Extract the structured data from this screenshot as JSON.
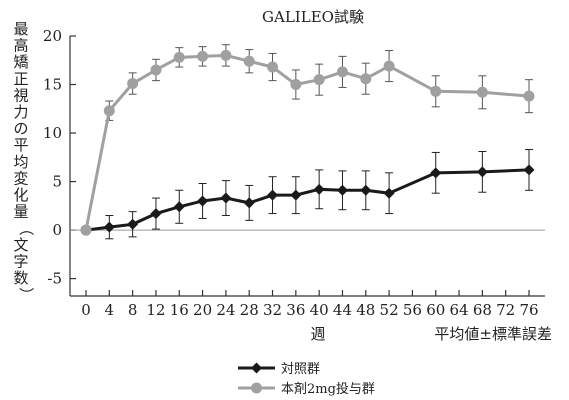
{
  "chart_data": {
    "type": "line",
    "title": "GALILEO試験",
    "ylabel": "最高矯正視力の平均変化量（文字数）",
    "xlabel": "週",
    "note": "平均値±標準誤差",
    "x": [
      0,
      4,
      8,
      12,
      16,
      20,
      24,
      28,
      32,
      36,
      40,
      44,
      48,
      52,
      60,
      68,
      76
    ],
    "xticks": [
      "0",
      "4",
      "8",
      "12",
      "16",
      "20",
      "24",
      "28",
      "32",
      "36",
      "40",
      "44",
      "48",
      "52",
      "56",
      "60",
      "64",
      "68",
      "72",
      "76"
    ],
    "xtick_values": [
      0,
      4,
      8,
      12,
      16,
      20,
      24,
      28,
      32,
      36,
      40,
      44,
      48,
      52,
      56,
      60,
      64,
      68,
      72,
      76
    ],
    "ylim": [
      -7,
      20
    ],
    "yticks": [
      -5,
      0,
      5,
      10,
      15,
      20
    ],
    "ytick_labels": [
      "-5",
      "0",
      "5",
      "10",
      "15",
      "20"
    ],
    "grid": false,
    "reference_line_y": 0,
    "legend_position": "bottom-left",
    "series": [
      {
        "name": "対照群",
        "color": "#1a1a1a",
        "marker": "diamond",
        "values": [
          0,
          0.3,
          0.6,
          1.7,
          2.4,
          3.0,
          3.3,
          2.8,
          3.6,
          3.6,
          4.2,
          4.1,
          4.1,
          3.8,
          5.9,
          6.0,
          6.2
        ],
        "errors": [
          0,
          1.2,
          1.3,
          1.6,
          1.7,
          1.8,
          1.8,
          1.8,
          1.9,
          1.9,
          2.0,
          2.0,
          2.0,
          2.1,
          2.1,
          2.1,
          2.1
        ]
      },
      {
        "name": "本剤2mg投与群",
        "color": "#a0a0a0",
        "marker": "circle",
        "values": [
          0,
          12.3,
          15.1,
          16.5,
          17.8,
          17.9,
          18.0,
          17.4,
          16.8,
          15.0,
          15.5,
          16.3,
          15.6,
          16.9,
          14.3,
          14.2,
          13.8
        ],
        "errors": [
          0,
          1.0,
          1.1,
          1.1,
          1.0,
          1.0,
          1.1,
          1.2,
          1.4,
          1.5,
          1.6,
          1.6,
          1.6,
          1.6,
          1.6,
          1.7,
          1.7
        ]
      }
    ]
  }
}
